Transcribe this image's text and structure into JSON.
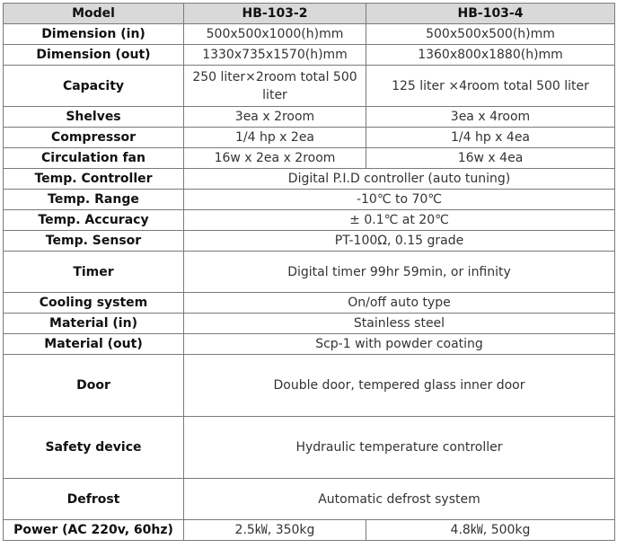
{
  "header": {
    "label": "Model",
    "model_a": "HB-103-2",
    "model_b": "HB-103-4"
  },
  "rows": [
    {
      "label": "Dimension (in)",
      "a": "500x500x1000(h)mm",
      "b": "500x500x500(h)mm"
    },
    {
      "label": "Dimension (out)",
      "a": "1330x735x1570(h)mm",
      "b": "1360x800x1880(h)mm"
    },
    {
      "label": "Capacity",
      "a": "250 liter×2room total 500 liter",
      "b": "125 liter ×4room total 500 liter"
    },
    {
      "label": "Shelves",
      "a": "3ea x 2room",
      "b": "3ea x 4room"
    },
    {
      "label": "Compressor",
      "a": "1/4 hp x 2ea",
      "b": "1/4 hp x 4ea"
    },
    {
      "label": "Circulation fan",
      "a": "16w x 2ea x 2room",
      "b": "16w x 4ea"
    },
    {
      "label": "Temp. Controller",
      "value": "Digital P.I.D controller (auto tuning)"
    },
    {
      "label": "Temp. Range",
      "value": "-10℃ to 70℃"
    },
    {
      "label": "Temp. Accuracy",
      "value": "± 0.1℃ at 20℃"
    },
    {
      "label": "Temp. Sensor",
      "value": "PT-100Ω, 0.15 grade"
    },
    {
      "label": "Timer",
      "value": "Digital timer 99hr 59min, or infinity"
    },
    {
      "label": "Cooling system",
      "value": "On/off auto type"
    },
    {
      "label": "Material (in)",
      "value": "Stainless steel"
    },
    {
      "label": "Material (out)",
      "value": "Scp-1 with powder coating"
    },
    {
      "label": "Door",
      "value": "Double door, tempered glass inner door"
    },
    {
      "label": "Safety device",
      "value": "Hydraulic temperature controller"
    },
    {
      "label": "Defrost",
      "value": "Automatic defrost system"
    },
    {
      "label": "Power (AC 220v, 60hz)",
      "a": "2.5㎾, 350kg",
      "b": "4.8㎾, 500kg"
    }
  ]
}
